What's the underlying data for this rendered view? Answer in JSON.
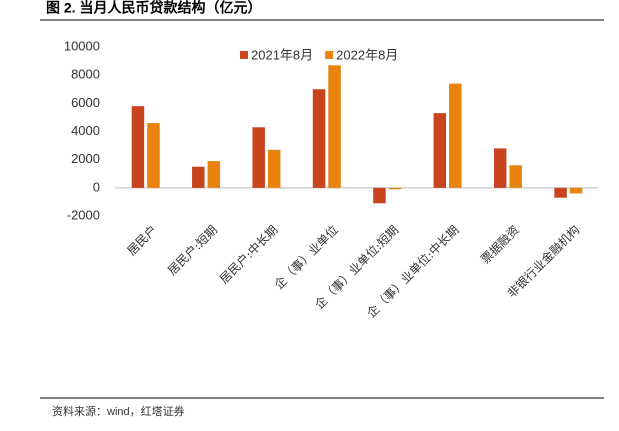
{
  "chart_data": {
    "type": "bar",
    "title": "图 2. 当月人民币贷款结构（亿元）",
    "source": "资料来源：wind，红塔证券",
    "categories": [
      "居民户",
      "居民户:短期",
      "居民户:中长期",
      "企（事）业单位",
      "企（事）业单位:短期",
      "企（事）业单位:中长期",
      "票据融资",
      "非银行业金融机构"
    ],
    "series": [
      {
        "name": "2021年8月",
        "color": "#c8441f",
        "values": [
          5800,
          1500,
          4300,
          7000,
          -1100,
          5300,
          2800,
          -700
        ]
      },
      {
        "name": "2022年8月",
        "color": "#e8830e",
        "values": [
          4600,
          1900,
          2700,
          8700,
          -100,
          7400,
          1600,
          -400
        ]
      }
    ],
    "ylim": [
      -2000,
      10000
    ],
    "yticks": [
      -2000,
      0,
      2000,
      4000,
      6000,
      8000,
      10000
    ],
    "grid": false,
    "legend": "top"
  }
}
